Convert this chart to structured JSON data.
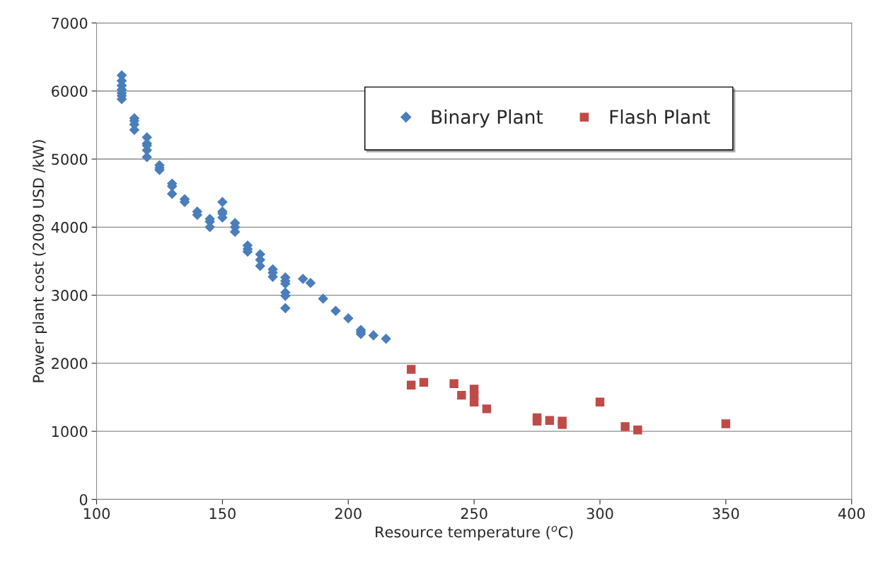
{
  "chart_data": {
    "type": "scatter",
    "xlabel": "Resource temperature ($^{o}$C)",
    "ylabel": "Power plant cost (2009 USD /kW)",
    "xlim": [
      100,
      400
    ],
    "xticks": [
      100,
      150,
      200,
      250,
      300,
      350,
      400
    ],
    "ylim": [
      0,
      7000
    ],
    "yticks": [
      0,
      1000,
      2000,
      3000,
      4000,
      5000,
      6000,
      7000
    ],
    "grid": "y",
    "legend": "top right",
    "series": [
      {
        "name": "Binary Plant",
        "color": "#4a7ebb",
        "marker": "diamond",
        "x": [
          110,
          110,
          110,
          110,
          110,
          110,
          110,
          115,
          115,
          115,
          115,
          120,
          120,
          120,
          120,
          120,
          125,
          125,
          125,
          130,
          130,
          130,
          135,
          135,
          140,
          140,
          145,
          145,
          145,
          150,
          150,
          150,
          150,
          155,
          155,
          155,
          160,
          160,
          160,
          165,
          165,
          165,
          170,
          170,
          170,
          175,
          175,
          175,
          175,
          175,
          175,
          182,
          185,
          190,
          195,
          200,
          205,
          205,
          205,
          210,
          215
        ],
        "values": [
          6230,
          6150,
          6080,
          6020,
          5970,
          5930,
          5880,
          5600,
          5560,
          5510,
          5430,
          5320,
          5230,
          5200,
          5130,
          5030,
          4910,
          4870,
          4840,
          4640,
          4600,
          4490,
          4410,
          4370,
          4230,
          4180,
          4120,
          4080,
          4000,
          4370,
          4230,
          4200,
          4140,
          4060,
          4000,
          3930,
          3730,
          3680,
          3640,
          3600,
          3520,
          3430,
          3380,
          3330,
          3270,
          3260,
          3210,
          3170,
          3040,
          2990,
          2810,
          3240,
          3180,
          2950,
          2770,
          2660,
          2490,
          2460,
          2430,
          2410,
          2360
        ]
      },
      {
        "name": "Flash Plant",
        "color": "#be4b48",
        "marker": "square",
        "x": [
          225,
          225,
          230,
          242,
          245,
          250,
          250,
          250,
          255,
          275,
          275,
          280,
          285,
          285,
          300,
          310,
          315,
          350
        ],
        "values": [
          1910,
          1680,
          1720,
          1700,
          1530,
          1620,
          1530,
          1430,
          1330,
          1200,
          1150,
          1160,
          1150,
          1100,
          1430,
          1070,
          1020,
          1110
        ]
      }
    ]
  }
}
